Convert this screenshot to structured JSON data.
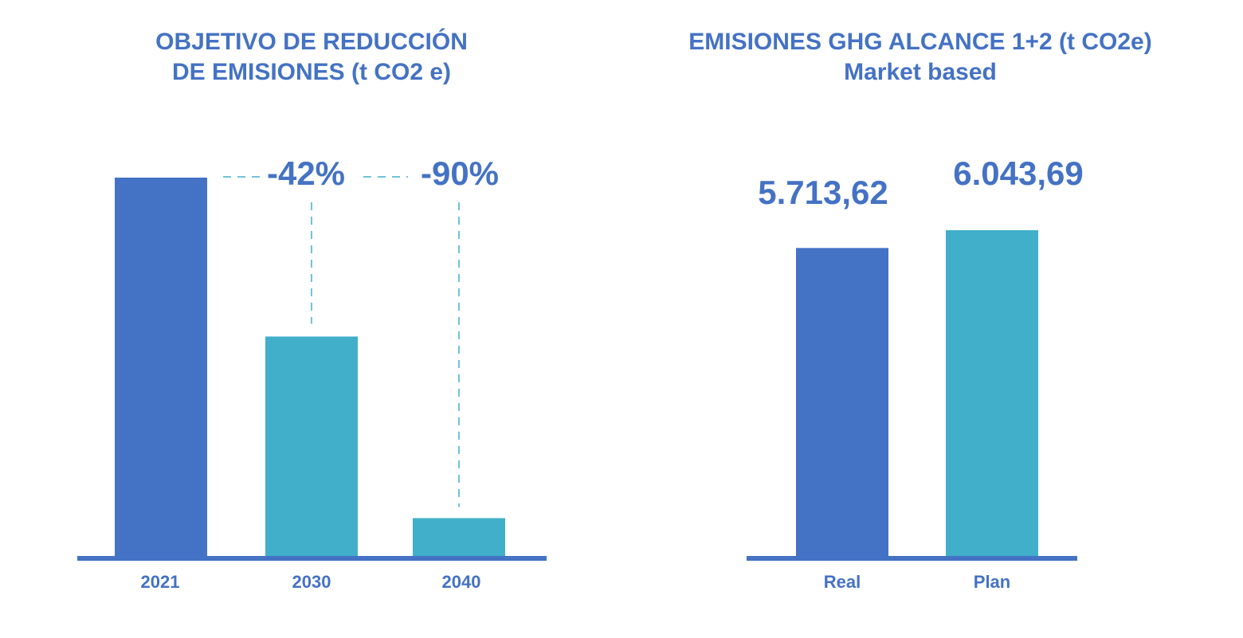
{
  "colors": {
    "primary": "#4472c4",
    "secondary": "#41afc9",
    "text": "#4472c4"
  },
  "chart_data": [
    {
      "type": "bar",
      "title_lines": [
        "OBJETIVO DE REDUCCIÓN",
        "DE EMISIONES (t CO2 e)"
      ],
      "categories": [
        "2021",
        "2030",
        "2040"
      ],
      "values": [
        100,
        58,
        10
      ],
      "ylim": [
        0,
        100
      ],
      "annotations": [
        "-42%",
        "-90%"
      ],
      "grid": false,
      "legend": "none"
    },
    {
      "type": "bar",
      "title_lines": [
        "EMISIONES GHG ALCANCE 1+2 (t CO2e)",
        "Market based"
      ],
      "categories": [
        "Real",
        "Plan"
      ],
      "values": [
        5713.62,
        6043.69
      ],
      "value_labels": [
        "5.713,62",
        "6.043,69"
      ],
      "ylim": [
        0,
        6860
      ],
      "grid": false,
      "legend": "none"
    }
  ]
}
